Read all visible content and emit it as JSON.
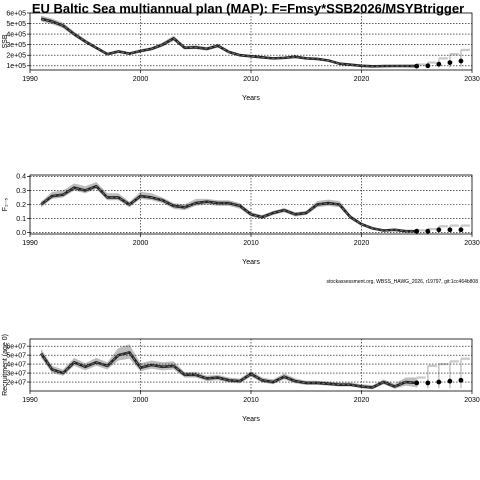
{
  "title": "EU Baltic Sea multiannual plan (MAP): F=Fmsy*SSB2026/MSYBtrigger",
  "footnote": "stockassessment.org, WBSS_HAWG_2026, r19797, git:1cc464b808",
  "chart_data": [
    {
      "type": "line",
      "ylabel": "SSB",
      "xlabel": "Years",
      "xlim": [
        1990,
        2030
      ],
      "ylim": [
        60000,
        600000
      ],
      "xticks": [
        1990,
        2000,
        2010,
        2020,
        2030
      ],
      "yticks": [
        100000,
        200000,
        300000,
        400000,
        500000,
        600000
      ],
      "ytick_labels": [
        "1e+05",
        "2e+05",
        "3e+05",
        "4e+05",
        "5e+05",
        "6e+05"
      ],
      "grid": true,
      "years": [
        1991,
        1992,
        1993,
        1994,
        1995,
        1996,
        1997,
        1998,
        1999,
        2000,
        2001,
        2002,
        2003,
        2004,
        2005,
        2006,
        2007,
        2008,
        2009,
        2010,
        2011,
        2012,
        2013,
        2014,
        2015,
        2016,
        2017,
        2018,
        2019,
        2020,
        2021,
        2022,
        2023,
        2024,
        2025
      ],
      "estimate": [
        545000,
        520000,
        480000,
        400000,
        330000,
        270000,
        210000,
        235000,
        215000,
        240000,
        260000,
        300000,
        360000,
        270000,
        275000,
        260000,
        290000,
        230000,
        200000,
        190000,
        180000,
        170000,
        175000,
        185000,
        170000,
        165000,
        150000,
        120000,
        110000,
        100000,
        95000,
        97000,
        98000,
        98000,
        97000
      ],
      "lower": [
        520000,
        495000,
        455000,
        380000,
        312000,
        255000,
        198000,
        220000,
        203000,
        225000,
        245000,
        280000,
        335000,
        255000,
        258000,
        244000,
        272000,
        216000,
        188000,
        178000,
        168000,
        159000,
        163000,
        172000,
        158000,
        154000,
        140000,
        111000,
        101000,
        92000,
        87000,
        88000,
        88000,
        86000,
        83000
      ],
      "upper": [
        575000,
        548000,
        508000,
        423000,
        350000,
        287000,
        224000,
        252000,
        229000,
        257000,
        277000,
        322000,
        386000,
        287000,
        294000,
        278000,
        310000,
        246000,
        214000,
        203000,
        193000,
        182000,
        188000,
        199000,
        183000,
        177000,
        161000,
        130000,
        120000,
        109000,
        104000,
        107000,
        109000,
        111000,
        112000
      ],
      "forecast_years": [
        2025,
        2026,
        2027,
        2028,
        2029
      ],
      "forecast_median": [
        97000,
        100000,
        115000,
        130000,
        145000
      ],
      "forecast_lower": [
        83000,
        82000,
        85000,
        88000,
        90000
      ],
      "forecast_upper": [
        112000,
        130000,
        170000,
        210000,
        250000
      ]
    },
    {
      "type": "line",
      "ylabel": "F₂₋₅",
      "xlabel": "Years",
      "xlim": [
        1990,
        2030
      ],
      "ylim": [
        -0.01,
        0.41
      ],
      "xticks": [
        1990,
        2000,
        2010,
        2020,
        2030
      ],
      "yticks": [
        0.0,
        0.1,
        0.2,
        0.3,
        0.4
      ],
      "ytick_labels": [
        "0.0",
        "0.1",
        "0.2",
        "0.3",
        "0.4"
      ],
      "grid": true,
      "years": [
        1991,
        1992,
        1993,
        1994,
        1995,
        1996,
        1997,
        1998,
        1999,
        2000,
        2001,
        2002,
        2003,
        2004,
        2005,
        2006,
        2007,
        2008,
        2009,
        2010,
        2011,
        2012,
        2013,
        2014,
        2015,
        2016,
        2017,
        2018,
        2019,
        2020,
        2021,
        2022,
        2023,
        2024,
        2025
      ],
      "estimate": [
        0.2,
        0.26,
        0.27,
        0.32,
        0.3,
        0.33,
        0.25,
        0.25,
        0.2,
        0.26,
        0.25,
        0.23,
        0.19,
        0.18,
        0.21,
        0.22,
        0.21,
        0.21,
        0.19,
        0.13,
        0.11,
        0.14,
        0.16,
        0.13,
        0.14,
        0.2,
        0.21,
        0.2,
        0.11,
        0.06,
        0.03,
        0.015,
        0.02,
        0.01,
        0.01
      ],
      "lower": [
        0.18,
        0.24,
        0.25,
        0.3,
        0.28,
        0.31,
        0.23,
        0.23,
        0.18,
        0.24,
        0.23,
        0.21,
        0.17,
        0.16,
        0.19,
        0.2,
        0.19,
        0.19,
        0.17,
        0.115,
        0.095,
        0.125,
        0.145,
        0.115,
        0.125,
        0.18,
        0.19,
        0.18,
        0.095,
        0.048,
        0.022,
        0.01,
        0.014,
        0.006,
        0.006
      ],
      "upper": [
        0.22,
        0.29,
        0.3,
        0.35,
        0.33,
        0.36,
        0.28,
        0.28,
        0.22,
        0.29,
        0.28,
        0.25,
        0.21,
        0.2,
        0.24,
        0.24,
        0.23,
        0.23,
        0.21,
        0.145,
        0.125,
        0.155,
        0.175,
        0.145,
        0.155,
        0.225,
        0.235,
        0.225,
        0.125,
        0.072,
        0.04,
        0.022,
        0.028,
        0.016,
        0.016
      ],
      "forecast_years": [
        2025,
        2026,
        2027,
        2028,
        2029
      ],
      "forecast_median": [
        0.01,
        0.01,
        0.02,
        0.02,
        0.02
      ],
      "forecast_lower": [
        0.006,
        0.006,
        0.01,
        0.01,
        0.01
      ],
      "forecast_upper": [
        0.016,
        0.025,
        0.045,
        0.05,
        0.05
      ]
    },
    {
      "type": "line",
      "ylabel": "Recruitment (age 0)",
      "xlabel": "Years",
      "xlim": [
        1990,
        2030
      ],
      "ylim": [
        10000000,
        68000000
      ],
      "xticks": [
        1990,
        2000,
        2010,
        2020,
        2030
      ],
      "yticks": [
        20000000,
        30000000,
        40000000,
        50000000,
        60000000
      ],
      "ytick_labels": [
        "2e+07",
        "3e+07",
        "4e+07",
        "5e+07",
        "6e+07"
      ],
      "grid": true,
      "years": [
        1991,
        1992,
        1993,
        1994,
        1995,
        1996,
        1997,
        1998,
        1999,
        2000,
        2001,
        2002,
        2003,
        2004,
        2005,
        2006,
        2007,
        2008,
        2009,
        2010,
        2011,
        2012,
        2013,
        2014,
        2015,
        2016,
        2017,
        2018,
        2019,
        2020,
        2021,
        2022,
        2023,
        2024,
        2025
      ],
      "estimate": [
        52000000,
        34000000,
        30000000,
        42000000,
        37000000,
        42000000,
        38000000,
        50000000,
        53000000,
        36000000,
        39000000,
        37000000,
        38000000,
        28000000,
        28000000,
        24000000,
        25000000,
        22000000,
        21000000,
        29000000,
        22000000,
        20000000,
        26000000,
        21000000,
        19000000,
        19000000,
        18000000,
        17000000,
        17000000,
        15000000,
        14000000,
        20000000,
        15000000,
        20000000,
        19000000
      ],
      "lower": [
        47000000,
        30000000,
        27000000,
        38000000,
        33000000,
        38000000,
        34000000,
        44000000,
        46000000,
        32000000,
        35000000,
        33000000,
        34000000,
        25000000,
        25000000,
        21000000,
        22000000,
        19500000,
        18500000,
        26000000,
        19500000,
        17500000,
        23000000,
        18500000,
        16800000,
        16800000,
        16000000,
        15000000,
        15000000,
        13000000,
        12000000,
        17500000,
        12500000,
        16000000,
        14000000
      ],
      "upper": [
        57000000,
        38000000,
        34000000,
        47000000,
        41000000,
        47000000,
        42000000,
        58000000,
        62000000,
        41000000,
        44000000,
        42000000,
        43000000,
        31000000,
        31500000,
        27000000,
        28000000,
        25000000,
        24000000,
        32500000,
        25000000,
        23000000,
        29500000,
        24000000,
        21500000,
        21500000,
        20500000,
        19500000,
        19500000,
        17500000,
        16500000,
        23000000,
        18000000,
        25000000,
        25000000
      ],
      "forecast_years": [
        2025,
        2026,
        2027,
        2028,
        2029
      ],
      "forecast_median": [
        19000000,
        19000000,
        20000000,
        21000000,
        22000000
      ],
      "forecast_lower": [
        14000000,
        13000000,
        13000000,
        13000000,
        13000000
      ],
      "forecast_upper": [
        25000000,
        38000000,
        40000000,
        43000000,
        46000000
      ]
    }
  ],
  "colors": {
    "band": "#bdbdbd",
    "forecast_band": "#c8c8c8",
    "line": "#000000",
    "grid": "#000000"
  }
}
